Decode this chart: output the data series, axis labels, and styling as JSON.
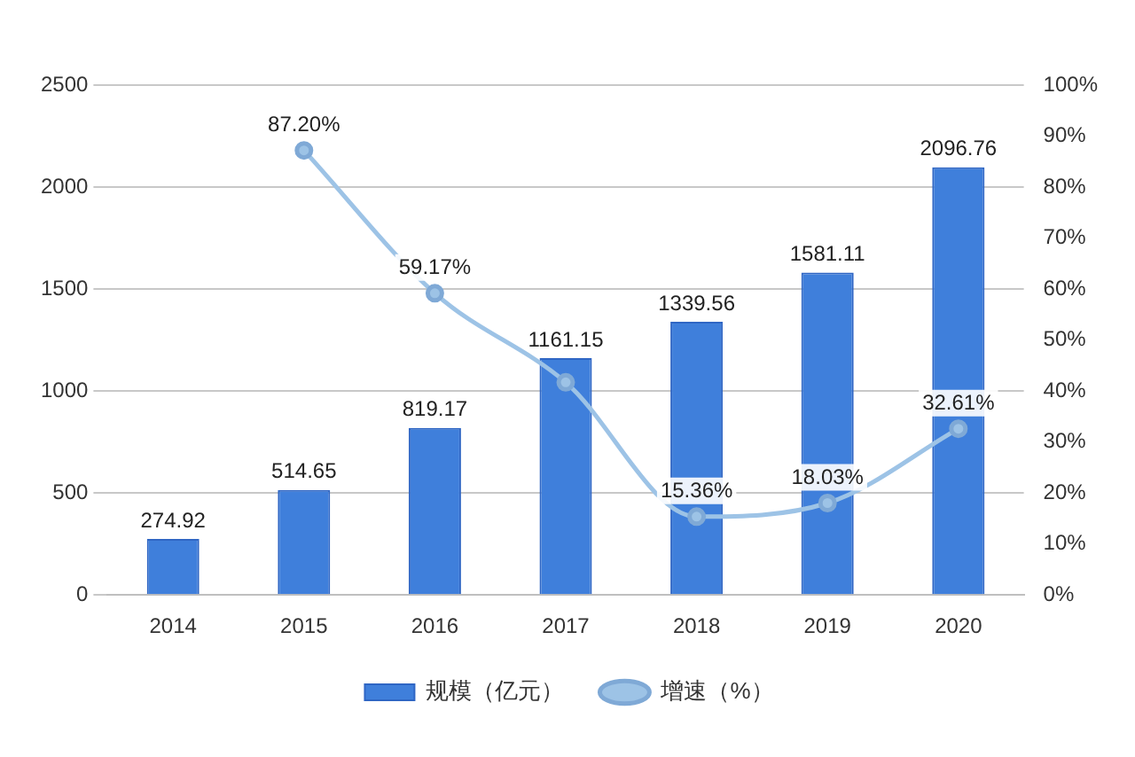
{
  "chart_data": {
    "type": "bar",
    "categories": [
      "2014",
      "2015",
      "2016",
      "2017",
      "2018",
      "2019",
      "2020"
    ],
    "series": [
      {
        "name": "规模（亿元）",
        "color": "#3f7fdb",
        "values": [
          274.92,
          514.65,
          819.17,
          1161.15,
          1339.56,
          1581.11,
          2096.76
        ],
        "value_labels": [
          "274.92",
          "514.65",
          "819.17",
          "1161.15",
          "1339.56",
          "1581.11",
          "2096.76"
        ]
      },
      {
        "name": "增速（%）",
        "type": "line",
        "axis": "y2",
        "color": "#9dc3e6",
        "values": [
          null,
          87.2,
          59.17,
          41.7,
          15.36,
          18.03,
          32.61
        ],
        "value_labels": [
          null,
          "87.20%",
          "59.17%",
          null,
          "15.36%",
          "18.03%",
          "32.61%"
        ]
      }
    ],
    "ylim": [
      0,
      2500
    ],
    "yticks": [
      0,
      500,
      1000,
      1500,
      2000,
      2500
    ],
    "y2lim": [
      0,
      100
    ],
    "y2ticks": [
      {
        "value": 0,
        "label": "0%"
      },
      {
        "value": 10,
        "label": "10%"
      },
      {
        "value": 20,
        "label": "20%"
      },
      {
        "value": 30,
        "label": "30%"
      },
      {
        "value": 40,
        "label": "40%"
      },
      {
        "value": 50,
        "label": "50%"
      },
      {
        "value": 60,
        "label": "60%"
      },
      {
        "value": 70,
        "label": "70%"
      },
      {
        "value": 80,
        "label": "80%"
      },
      {
        "value": 90,
        "label": "90%"
      },
      {
        "value": 100,
        "label": "100%"
      }
    ],
    "grid": "y",
    "legend": "bottom",
    "marker": "circle",
    "line_style": "solid"
  }
}
